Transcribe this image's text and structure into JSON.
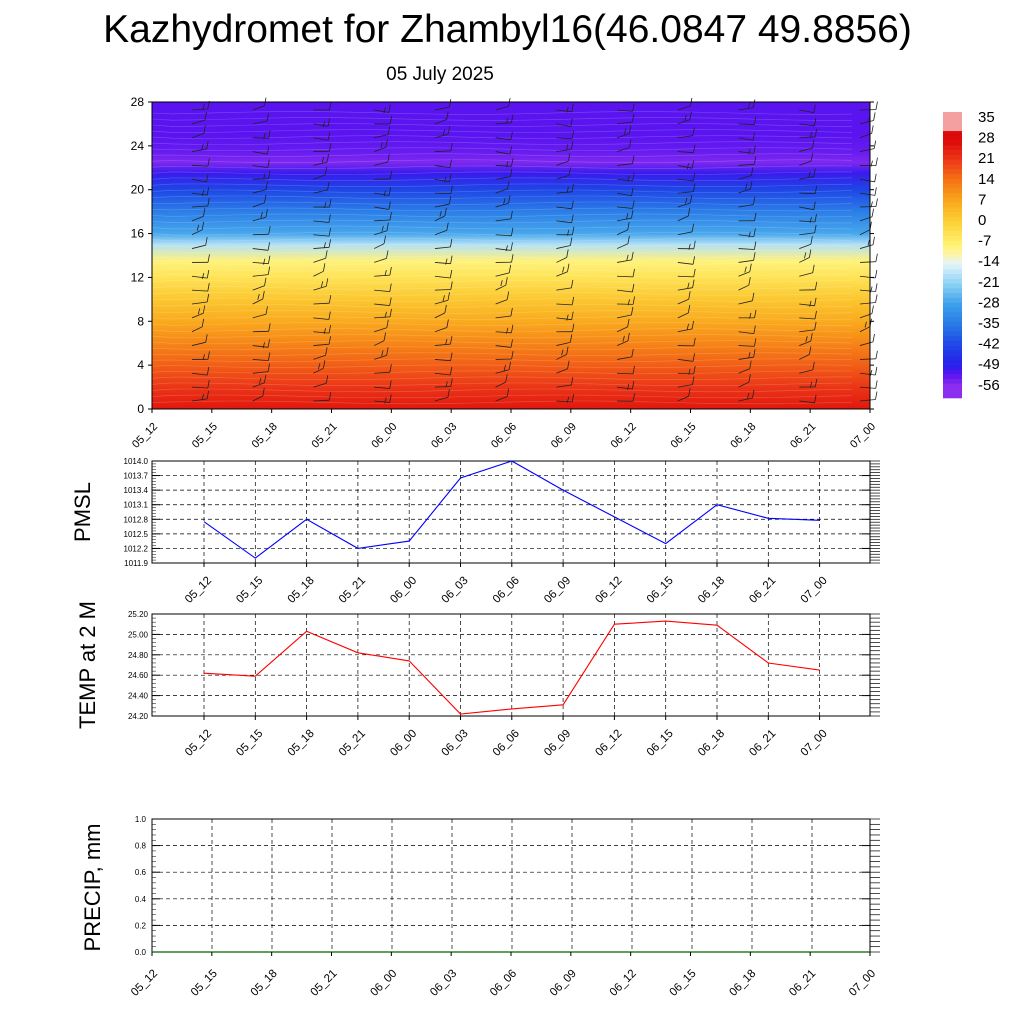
{
  "title": "Kazhydromet for Zhambyl16(46.0847 49.8856)",
  "subtitle": "05 July 2025",
  "chart_data": [
    {
      "type": "heatmap",
      "title": "Kazhydromet for Zhambyl16(46.0847 49.8856)",
      "x_ticks": [
        "05_12",
        "05_15",
        "05_18",
        "05_21",
        "06_00",
        "06_03",
        "06_06",
        "06_09",
        "06_12",
        "06_15",
        "06_18",
        "06_21",
        "07_00"
      ],
      "y_ticks": [
        "0",
        "4",
        "8",
        "12",
        "16",
        "20",
        "24",
        "28"
      ],
      "ylim": [
        0,
        28
      ],
      "colorbar_labels": [
        "35",
        "28",
        "21",
        "14",
        "7",
        "0",
        "-7",
        "-14",
        "-21",
        "-28",
        "-35",
        "-42",
        "-49",
        "-56"
      ],
      "colorbar_colors": [
        "#f4b6b6",
        "#eb1f1f",
        "#ef4a12",
        "#f67c14",
        "#fbb31f",
        "#fbd83a",
        "#fff27f",
        "#e6f4fa",
        "#8fd3f2",
        "#2fa0e8",
        "#1b66e2",
        "#1d2ce8",
        "#3b14f0",
        "#8b2ef0"
      ],
      "temperature_profile_by_level": {
        "levels": [
          0,
          2,
          4,
          6,
          8,
          10,
          12,
          13.5,
          15,
          16,
          18,
          20,
          21.5,
          22.5,
          23.5,
          25,
          28
        ],
        "values": [
          26,
          22,
          17,
          12,
          7,
          2,
          -4,
          -8,
          -18,
          -27,
          -34,
          -42,
          -50,
          -55,
          -53,
          -52,
          -52
        ]
      }
    },
    {
      "type": "line",
      "ylabel": "PMSL",
      "x": [
        "05_12",
        "05_15",
        "05_18",
        "05_21",
        "06_00",
        "06_03",
        "06_06",
        "06_09",
        "06_12",
        "06_15",
        "06_18",
        "06_21",
        "07_00"
      ],
      "y": [
        1012.75,
        1012.0,
        1012.8,
        1012.2,
        1012.35,
        1013.65,
        1014.0,
        1013.4,
        1012.85,
        1012.3,
        1013.1,
        1012.82,
        1012.78
      ],
      "y_ticks": [
        "1011.9",
        "1012.2",
        "1012.5",
        "1012.8",
        "1013.1",
        "1013.4",
        "1013.7",
        "1014.0"
      ],
      "ylim": [
        1011.9,
        1014.0
      ],
      "grid": true,
      "color": "#0000ff"
    },
    {
      "type": "line",
      "ylabel": "TEMP at 2 M",
      "x": [
        "05_12",
        "05_15",
        "05_18",
        "05_21",
        "06_00",
        "06_03",
        "06_06",
        "06_09",
        "06_12",
        "06_15",
        "06_18",
        "06_21",
        "07_00"
      ],
      "y": [
        24.62,
        24.59,
        25.03,
        24.82,
        24.74,
        24.22,
        24.27,
        24.31,
        25.1,
        25.13,
        25.09,
        24.72,
        24.65
      ],
      "y_ticks": [
        "24.20",
        "24.40",
        "24.60",
        "24.80",
        "25.00",
        "25.20"
      ],
      "ylim": [
        24.2,
        25.2
      ],
      "grid": true,
      "color": "#ff0000"
    },
    {
      "type": "line",
      "ylabel": "PRECIP, mm",
      "x": [
        "05_12",
        "05_15",
        "05_18",
        "05_21",
        "06_00",
        "06_03",
        "06_06",
        "06_09",
        "06_12",
        "06_15",
        "06_18",
        "06_21",
        "07_00"
      ],
      "y": [
        0,
        0,
        0,
        0,
        0,
        0,
        0,
        0,
        0,
        0,
        0,
        0,
        0
      ],
      "y_ticks": [
        "0.0",
        "0.2",
        "0.4",
        "0.6",
        "0.8",
        "1.0"
      ],
      "ylim": [
        0,
        1.0
      ],
      "grid": true,
      "color": "#006400"
    }
  ]
}
